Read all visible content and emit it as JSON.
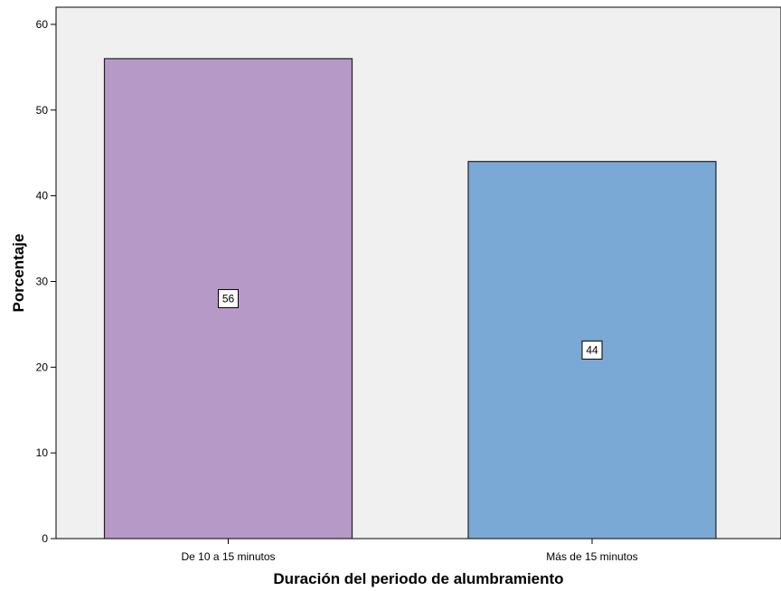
{
  "chart_data": {
    "type": "bar",
    "title": "",
    "xlabel": "Duración del periodo de alumbramiento",
    "ylabel": "Porcentaje",
    "ylim": [
      0,
      62
    ],
    "yticks": [
      0,
      10,
      20,
      30,
      40,
      50,
      60
    ],
    "grid": false,
    "categories": [
      "De 10 a 15 minutos",
      "Más de 15 minutos"
    ],
    "values": [
      56,
      44
    ],
    "data_labels": [
      "56",
      "44"
    ],
    "colors": [
      "#b799c8",
      "#7ba9d6"
    ],
    "plot_background": "#f0f0f0"
  }
}
